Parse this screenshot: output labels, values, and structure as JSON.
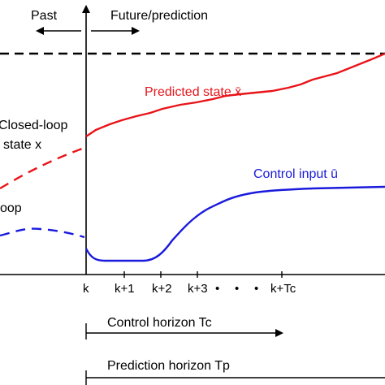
{
  "top": {
    "past": "Past",
    "future": "Future/prediction"
  },
  "labels": {
    "predicted_state": "Predicted state x̄",
    "control_input": "Control input ū",
    "closed_loop_1": "Closed-loop",
    "closed_loop_2": "state x",
    "open_loop_fragment": "oop"
  },
  "ticks": [
    "k",
    "k+1",
    "k+2",
    "k+3",
    "•",
    "•",
    "•",
    "k+Tc"
  ],
  "horizons": {
    "control": "Control horizon Tc",
    "prediction": "Prediction horizon Tp"
  },
  "colors": {
    "state": "#e8141a",
    "input": "#1a1adc",
    "axis": "#000000"
  }
}
